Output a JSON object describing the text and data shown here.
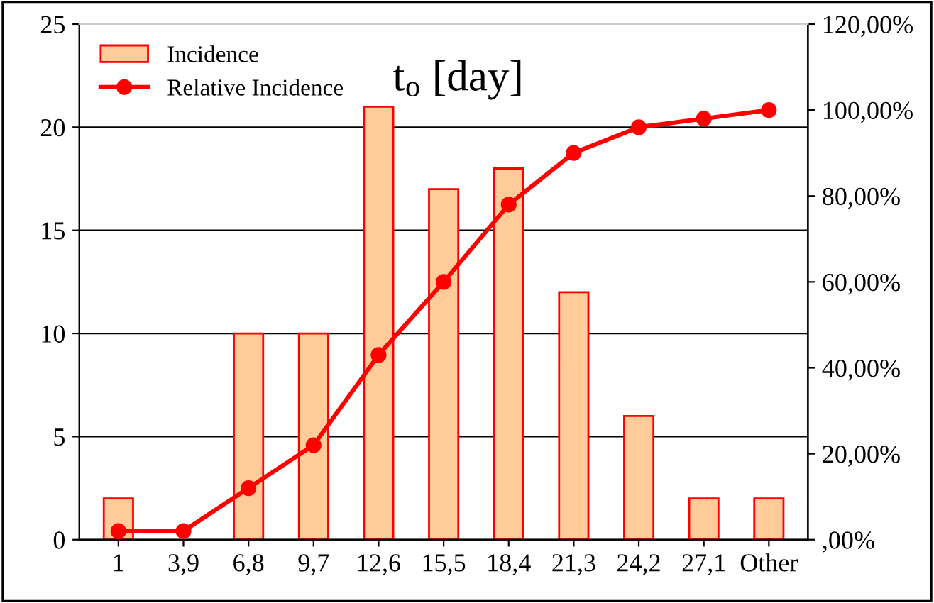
{
  "chart_data": {
    "type": "bar",
    "title": "t$_{o}$ [day]",
    "categories": [
      "1",
      "3,9",
      "6,8",
      "9,7",
      "12,6",
      "15,5",
      "18,4",
      "21,3",
      "24,2",
      "27,1",
      "Other"
    ],
    "series": [
      {
        "name": "Incidence",
        "color": "#ffcc99",
        "values": [
          2,
          0,
          10,
          10,
          21,
          17,
          18,
          12,
          6,
          2,
          2
        ]
      },
      {
        "name": "Relative Incidence",
        "type": "line",
        "axis": "y2",
        "color": "#ff0000",
        "marker": "circle",
        "values": [
          2,
          2,
          12,
          22,
          43,
          60,
          78,
          90,
          96,
          98,
          100
        ]
      }
    ],
    "ylim": [
      0,
      25
    ],
    "yticks": [
      0,
      5,
      10,
      15,
      20,
      25
    ],
    "y2lim": [
      0,
      120
    ],
    "y2ticks": [
      {
        "value": 0,
        "label": ",00%"
      },
      {
        "value": 20,
        "label": "20,00%"
      },
      {
        "value": 40,
        "label": "40,00%"
      },
      {
        "value": 60,
        "label": "60,00%"
      },
      {
        "value": 80,
        "label": "80,00%"
      },
      {
        "value": 100,
        "label": "100,00%"
      },
      {
        "value": 120,
        "label": "120,00%"
      }
    ],
    "grid": "y",
    "legend": "top left"
  }
}
